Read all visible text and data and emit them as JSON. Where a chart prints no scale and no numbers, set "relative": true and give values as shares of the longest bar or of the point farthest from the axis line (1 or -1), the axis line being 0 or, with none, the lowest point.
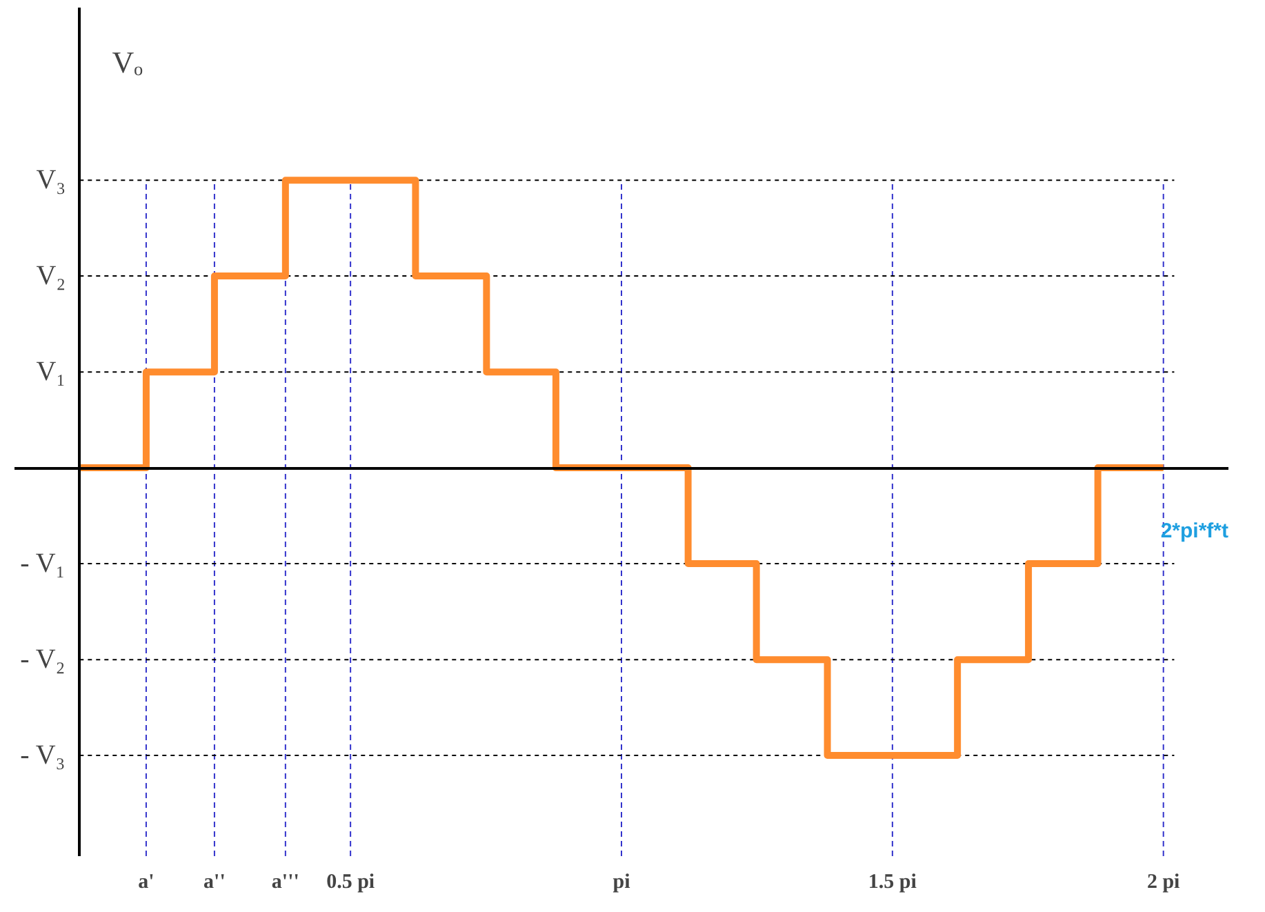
{
  "chart_data": {
    "type": "step",
    "relative": true,
    "x": [
      0,
      0.123,
      0.249,
      0.38,
      0.62,
      0.751,
      0.879,
      1.123,
      1.249,
      1.38,
      1.62,
      1.751,
      1.879,
      2.0
    ],
    "series": [
      {
        "color": "#ff8c2e",
        "values": [
          0,
          0.333,
          0.667,
          1,
          0.667,
          0.333,
          0,
          -0.333,
          -0.667,
          -1,
          -0.667,
          -0.333,
          0,
          0
        ]
      }
    ],
    "xlabel": "2*pi*f*t",
    "ylabel": "Vₒ",
    "xlim": [
      -0.12,
      2.12
    ],
    "xticks": [
      {
        "value": 0.123,
        "label": "a'"
      },
      {
        "value": 0.249,
        "label": "a''"
      },
      {
        "value": 0.38,
        "label": "a'''"
      },
      {
        "value": 0.5,
        "label": "0.5 pi"
      },
      {
        "value": 1.0,
        "label": "pi"
      },
      {
        "value": 1.5,
        "label": "1.5 pi"
      },
      {
        "value": 2.0,
        "label": "2 pi"
      }
    ],
    "annotations": [
      "V₃",
      "V₂",
      "V₁",
      "- V₁",
      "- V₂",
      "- V₃"
    ],
    "grid": true,
    "line_style": "solid",
    "marker": "none"
  }
}
